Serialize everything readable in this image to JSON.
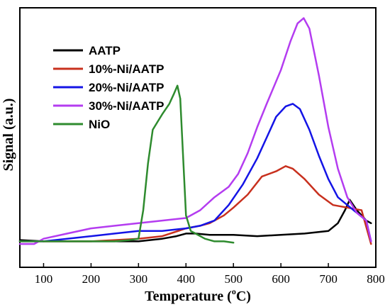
{
  "chart_data": {
    "type": "line",
    "xlabel_main": "Temperature (",
    "xlabel_sup": "o",
    "xlabel_end": "C)",
    "ylabel": "Signal (a.u.)",
    "xlim": [
      50,
      800
    ],
    "ylim": [
      0,
      100
    ],
    "xticks": [
      100,
      200,
      300,
      400,
      500,
      600,
      700,
      800
    ],
    "y_tick_labels": false,
    "legend_position": "top-left",
    "series": [
      {
        "name": "AATP",
        "color": "#000000",
        "x": [
          50,
          100,
          150,
          200,
          250,
          300,
          350,
          380,
          400,
          420,
          450,
          500,
          550,
          600,
          650,
          700,
          720,
          735,
          745,
          760,
          780,
          790
        ],
        "y": [
          10.5,
          10,
          10,
          10,
          10,
          10,
          11,
          12,
          13,
          13,
          12.5,
          12.5,
          12,
          12.5,
          13,
          14,
          17,
          22,
          26,
          22,
          18,
          17
        ]
      },
      {
        "name": "10%-Ni/AATP",
        "color": "#c8301e",
        "x": [
          50,
          100,
          150,
          200,
          250,
          300,
          350,
          400,
          430,
          450,
          480,
          500,
          530,
          560,
          590,
          610,
          625,
          650,
          680,
          710,
          740,
          770,
          790
        ],
        "y": [
          10,
          10,
          10,
          10,
          10.5,
          11,
          12,
          15,
          16,
          17,
          20,
          23,
          28,
          35,
          37,
          39,
          38,
          34,
          28,
          24,
          23,
          22,
          9
        ]
      },
      {
        "name": "20%-Ni/AATP",
        "color": "#1414e6",
        "x": [
          50,
          100,
          150,
          200,
          250,
          300,
          350,
          400,
          430,
          460,
          490,
          520,
          550,
          570,
          590,
          610,
          625,
          640,
          660,
          680,
          700,
          720,
          740,
          760,
          780,
          790
        ],
        "y": [
          10,
          10,
          11,
          12,
          13,
          14,
          14,
          15,
          16,
          18,
          24,
          32,
          42,
          50,
          58,
          62,
          63,
          61,
          53,
          43,
          34,
          27,
          24,
          21,
          18,
          10
        ]
      },
      {
        "name": "30%-Ni/AATP",
        "color": "#b43cf0",
        "x": [
          50,
          80,
          100,
          150,
          200,
          250,
          300,
          350,
          400,
          430,
          460,
          490,
          510,
          530,
          550,
          570,
          600,
          620,
          635,
          648,
          660,
          680,
          700,
          720,
          740,
          760,
          780,
          790
        ],
        "y": [
          9,
          9,
          11,
          13,
          15,
          16,
          17,
          18,
          19,
          22,
          27,
          31,
          36,
          44,
          54,
          63,
          76,
          87,
          94,
          96,
          92,
          74,
          54,
          38,
          27,
          21,
          18,
          10
        ]
      },
      {
        "name": "NiO",
        "color": "#2e8b2e",
        "x": [
          50,
          100,
          150,
          200,
          250,
          280,
          300,
          310,
          320,
          330,
          340,
          350,
          365,
          375,
          382,
          388,
          392,
          396,
          400,
          410,
          420,
          440,
          460,
          480,
          500
        ],
        "y": [
          10,
          10,
          10,
          10,
          10,
          10.5,
          11,
          22,
          40,
          53,
          56,
          59,
          63,
          67,
          70,
          65,
          50,
          35,
          20,
          14,
          13,
          11,
          10,
          10,
          9.5
        ]
      }
    ]
  }
}
